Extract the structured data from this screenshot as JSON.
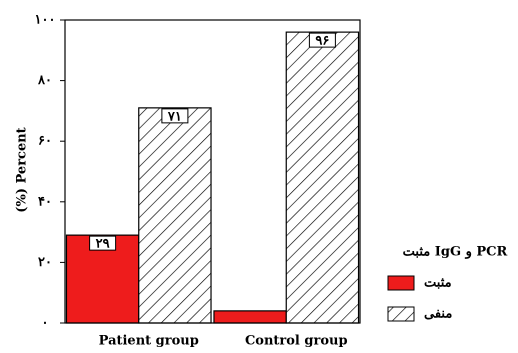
{
  "chart_data": {
    "type": "bar",
    "ylabel": "(%) Percent",
    "legend_title": "مثبت IgG و PCR",
    "categories": [
      "Patient group",
      "Control group"
    ],
    "series": [
      {
        "name": "مثبت",
        "color": "#ee1c1c",
        "pattern": "solid",
        "values": [
          29,
          4
        ],
        "value_labels": [
          "۲۹",
          null
        ]
      },
      {
        "name": "منفی",
        "color": "#000000",
        "pattern": "hatch",
        "values": [
          71,
          96
        ],
        "value_labels": [
          "۷۱",
          "۹۶"
        ]
      }
    ],
    "ylim": [
      0,
      100
    ],
    "yticks": [
      {
        "value": 0,
        "label": "۰"
      },
      {
        "value": 20,
        "label": "۲۰"
      },
      {
        "value": 40,
        "label": "۴۰"
      },
      {
        "value": 60,
        "label": "۶۰"
      },
      {
        "value": 80,
        "label": "۸۰"
      },
      {
        "value": 100,
        "label": "۱۰۰"
      }
    ],
    "legend": "right"
  }
}
